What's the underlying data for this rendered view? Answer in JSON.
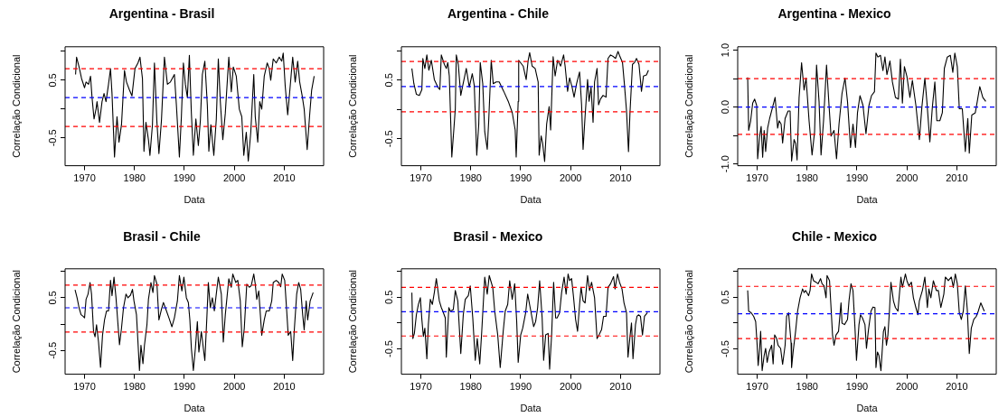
{
  "chart_data": [
    {
      "type": "line",
      "title": "Argentina - Brasil",
      "xlabel": "Data",
      "ylabel": "Correlação Condicional",
      "marker": "none",
      "legend": false,
      "xlim": [
        1966.1,
        2017.9
      ],
      "xticks": [
        1970,
        1980,
        1990,
        2000,
        2010
      ],
      "ylim": [
        -0.98,
        1.08
      ],
      "yticks": [
        {
          "value": -0.5,
          "label": "-0.5"
        },
        {
          "value": 0,
          "label": null
        },
        {
          "value": 0.5,
          "label": "0.5"
        },
        {
          "value": 1,
          "label": null
        }
      ],
      "ref_lines": [
        {
          "axis": "y",
          "value": 0.7,
          "color": "#ff0000",
          "line_style": "dashed"
        },
        {
          "axis": "y",
          "value": 0.2,
          "color": "#0000ff",
          "line_style": "dashed"
        },
        {
          "axis": "y",
          "value": -0.3,
          "color": "#ff0000",
          "line_style": "dashed"
        }
      ],
      "series": [
        {
          "color": "#000000",
          "x": [
            1968.2,
            1968.4,
            1968.9,
            1969.4,
            1970.0,
            1970.3,
            1970.8,
            1971.2,
            1971.5,
            1971.9,
            1972.3,
            1972.5,
            1973.0,
            1973.5,
            1973.9,
            1974.3,
            1974.8,
            1975.2,
            1975.5,
            1976.0,
            1976.5,
            1976.9,
            1977.4,
            1978.0,
            1978.4,
            1979.0,
            1979.5,
            1980.1,
            1980.7,
            1981.1,
            1981.6,
            1981.9,
            1982.3,
            1982.8,
            1983.1,
            1983.6,
            1984.0,
            1984.5,
            1984.9,
            1985.4,
            1986.0,
            1986.6,
            1987.2,
            1988.0,
            1988.4,
            1989.0,
            1989.4,
            1989.8,
            1990.2,
            1990.6,
            1991.0,
            1991.4,
            1991.8,
            1992.3,
            1992.8,
            1993.2,
            1993.6,
            1994.1,
            1994.6,
            1994.9,
            1995.3,
            1995.9,
            1996.4,
            1996.8,
            1997.2,
            1997.7,
            1998.2,
            1998.9,
            1999.4,
            1999.8,
            2000.4,
            2001.0,
            2001.5,
            2001.9,
            2002.4,
            2002.8,
            2003.3,
            2003.9,
            2004.2,
            2004.7,
            2005.1,
            2005.5,
            2006.0,
            2006.6,
            2007.0,
            2007.3,
            2007.8,
            2008.4,
            2009.0,
            2009.5,
            2009.8,
            2010.2,
            2010.7,
            2011.1,
            2011.7,
            2012.2,
            2012.7,
            2013.1,
            2013.6,
            2014.0,
            2014.6,
            2015.1,
            2015.5,
            2016.0
          ],
          "values": [
            0.6,
            0.9,
            0.73,
            0.53,
            0.37,
            0.47,
            0.43,
            0.57,
            0.2,
            -0.17,
            0,
            0.13,
            -0.23,
            0.13,
            0.27,
            0.13,
            0.43,
            0.7,
            0.27,
            -0.83,
            -0.13,
            -0.57,
            -0.27,
            0.67,
            0.47,
            0.33,
            0.23,
            0.7,
            0.8,
            0.9,
            0.53,
            -0.73,
            -0.23,
            -0.53,
            -0.8,
            -0.27,
            0.8,
            -0.23,
            -0.77,
            -0.2,
            0.9,
            0.43,
            0.47,
            0.6,
            0.07,
            -0.83,
            -0.13,
            0.8,
            0.43,
            0.2,
            0.93,
            -0.07,
            -0.8,
            -0.17,
            -0.63,
            -0.2,
            0.6,
            0.83,
            0.07,
            -0.73,
            -0.27,
            -0.8,
            -0.17,
            0.87,
            0.13,
            -0.53,
            -0.07,
            0.9,
            0.3,
            0.73,
            0.57,
            0,
            -0.13,
            -0.8,
            -0.4,
            -0.9,
            -0.4,
            0.6,
            -0.13,
            -0.57,
            0.13,
            0,
            0.57,
            0.8,
            0.7,
            0.5,
            0.87,
            0.8,
            0.9,
            0.83,
            0.97,
            0.4,
            -0.1,
            0.3,
            0.9,
            0.47,
            0.83,
            0.47,
            0.23,
            0,
            -0.7,
            -0.1,
            0.33,
            0.57
          ]
        }
      ]
    },
    {
      "type": "line",
      "title": "Argentina - Chile",
      "xlabel": "Data",
      "ylabel": "Correlação Condicional",
      "marker": "none",
      "legend": false,
      "xlim": [
        1966.1,
        2017.9
      ],
      "xticks": [
        1970,
        1980,
        1990,
        2000,
        2010
      ],
      "ylim": [
        -0.96,
        1.07
      ],
      "yticks": [
        {
          "value": -0.5,
          "label": "-0.5"
        },
        {
          "value": 0,
          "label": null
        },
        {
          "value": 0.5,
          "label": "0.5"
        },
        {
          "value": 1,
          "label": null
        }
      ],
      "ref_lines": [
        {
          "axis": "y",
          "value": 0.82,
          "color": "#ff0000",
          "line_style": "dashed"
        },
        {
          "axis": "y",
          "value": 0.39,
          "color": "#0000ff",
          "line_style": "dashed"
        },
        {
          "axis": "y",
          "value": -0.04,
          "color": "#ff0000",
          "line_style": "dashed"
        }
      ],
      "series": [
        {
          "color": "#000000",
          "x": [
            1968.2,
            1968.6,
            1969.1,
            1969.7,
            1970.2,
            1970.4,
            1970.8,
            1971.2,
            1971.6,
            1972.1,
            1972.7,
            1973.4,
            1973.8,
            1974.1,
            1974.7,
            1975.1,
            1975.4,
            1975.7,
            1976.2,
            1976.6,
            1976.9,
            1977.1,
            1977.5,
            1978.0,
            1978.4,
            1979.1,
            1979.7,
            1980.3,
            1980.7,
            1981.2,
            1981.6,
            1981.9,
            1982.4,
            1982.8,
            1983.3,
            1983.6,
            1984.1,
            1984.5,
            1985.1,
            1985.7,
            1986.6,
            1987.5,
            1988.3,
            1988.9,
            1989.1,
            1989.5,
            1989.6,
            1990.5,
            1991.1,
            1991.5,
            1991.8,
            1992.3,
            1992.9,
            1993.5,
            1993.7,
            1994.1,
            1994.4,
            1994.8,
            1995.2,
            1995.7,
            1996.0,
            1996.5,
            1996.9,
            1997.4,
            1998.0,
            1998.6,
            1998.9,
            1999.4,
            1999.8,
            2000.3,
            2000.7,
            2001.2,
            2001.8,
            2002.2,
            2002.5,
            2002.9,
            2003.4,
            2003.7,
            2004.1,
            2004.5,
            2004.8,
            2005.3,
            2005.6,
            2006.0,
            2006.5,
            2007.1,
            2007.5,
            2008.0,
            2008.6,
            2009.0,
            2009.5,
            2009.9,
            2010.4,
            2010.8,
            2011.2,
            2011.6,
            2011.9,
            2012.4,
            2012.8,
            2013.2,
            2013.7,
            2014.2,
            2014.6,
            2015.2,
            2015.6
          ],
          "values": [
            0.7,
            0.44,
            0.26,
            0.24,
            0.34,
            0.87,
            0.7,
            0.93,
            0.67,
            0.84,
            0.51,
            0.38,
            0.34,
            0.93,
            0.77,
            0.7,
            0.8,
            0.57,
            -0.81,
            -0.35,
            0.01,
            0.93,
            0.77,
            0.24,
            0.41,
            0.7,
            0.38,
            0.61,
            0.41,
            -0.78,
            -0.25,
            0.8,
            0.44,
            -0.38,
            -0.68,
            -0.18,
            0.84,
            0.44,
            0.47,
            0.47,
            0.31,
            0.14,
            -0.05,
            -0.35,
            -0.81,
            0.14,
            0.84,
            0.74,
            0.51,
            0.84,
            0.97,
            0.74,
            0.7,
            0.47,
            -0.78,
            -0.45,
            -0.58,
            -0.89,
            -0.25,
            0.05,
            -0.35,
            0.9,
            0.57,
            0.84,
            0.74,
            0.93,
            0.74,
            0.31,
            0.54,
            0.38,
            0.21,
            0.44,
            0.64,
            0.08,
            -0.68,
            -0.12,
            0.51,
            0.14,
            0.38,
            -0.22,
            0.47,
            0.7,
            0.08,
            0.18,
            0.24,
            0.21,
            0.87,
            0.93,
            0.9,
            0.87,
            0.99,
            0.9,
            0.8,
            0.41,
            -0.02,
            -0.72,
            -0.05,
            0.77,
            0.8,
            0.87,
            0.77,
            0.31,
            0.57,
            0.59,
            0.67
          ]
        }
      ]
    },
    {
      "type": "line",
      "title": "Argentina - Mexico",
      "xlabel": "Data",
      "ylabel": "Correlação Condicional",
      "marker": "none",
      "legend": false,
      "xlim": [
        1966.1,
        2017.9
      ],
      "xticks": [
        1970,
        1980,
        1990,
        2000,
        2010
      ],
      "ylim": [
        -1.03,
        1.06
      ],
      "yticks": [
        {
          "value": -1,
          "label": "-1.0"
        },
        {
          "value": -0.5,
          "label": null
        },
        {
          "value": 0,
          "label": "0.0"
        },
        {
          "value": 0.5,
          "label": null
        },
        {
          "value": 1,
          "label": "1.0"
        }
      ],
      "ref_lines": [
        {
          "axis": "y",
          "value": 0.5,
          "color": "#ff0000",
          "line_style": "dashed"
        },
        {
          "axis": "y",
          "value": 0,
          "color": "#0000ff",
          "line_style": "dashed"
        },
        {
          "axis": "y",
          "value": -0.48,
          "color": "#ff0000",
          "line_style": "dashed"
        }
      ],
      "series": [
        {
          "color": "#000000",
          "x": [
            1968.1,
            1968.3,
            1968.7,
            1969.1,
            1969.5,
            1969.9,
            1970.1,
            1970.5,
            1970.8,
            1971.1,
            1971.4,
            1971.7,
            1972.1,
            1972.5,
            1973.0,
            1973.6,
            1974.1,
            1974.4,
            1974.8,
            1975.1,
            1975.6,
            1976.2,
            1976.6,
            1976.9,
            1977.4,
            1977.7,
            1978.0,
            1978.4,
            1978.9,
            1979.4,
            1979.8,
            1980.4,
            1981.0,
            1981.5,
            1981.9,
            1982.4,
            1982.8,
            1983.3,
            1983.9,
            1984.4,
            1984.8,
            1985.4,
            1985.9,
            1986.4,
            1987.0,
            1987.6,
            1988.1,
            1988.7,
            1989.2,
            1989.7,
            1990.1,
            1990.6,
            1991.2,
            1991.8,
            1992.4,
            1992.9,
            1993.5,
            1993.8,
            1994.2,
            1994.7,
            1995.2,
            1995.6,
            1996.0,
            1996.6,
            1997.1,
            1997.7,
            1998.3,
            1998.7,
            1999.1,
            1999.5,
            2000.0,
            2000.6,
            2001.1,
            2001.8,
            2002.5,
            2003.0,
            2003.6,
            2004.0,
            2004.6,
            2005.1,
            2005.6,
            2006.0,
            2006.6,
            2007.1,
            2007.5,
            2008.1,
            2008.7,
            2009.2,
            2009.6,
            2010.1,
            2010.5,
            2011.1,
            2011.7,
            2012.2,
            2012.5,
            2013.0,
            2013.7,
            2014.1,
            2014.6,
            2015.2,
            2015.8
          ],
          "values": [
            0.52,
            -0.41,
            -0.24,
            0.07,
            0.14,
            0.03,
            -0.91,
            -0.51,
            -0.34,
            -0.88,
            -0.41,
            -0.78,
            -0.37,
            -0.2,
            -0.03,
            0.17,
            -0.37,
            -0.24,
            -0.3,
            -0.63,
            -0.2,
            -0.07,
            -0.07,
            -0.95,
            -0.57,
            -0.64,
            -0.93,
            0.17,
            0.78,
            0.3,
            0.51,
            -0.24,
            -0.84,
            -0.44,
            0.74,
            0.1,
            -0.84,
            -0.24,
            0.74,
            0.03,
            -0.51,
            -0.41,
            -0.91,
            -0.3,
            0.24,
            0.51,
            0.1,
            -0.71,
            -0.3,
            -0.71,
            -0.1,
            0.2,
            0.03,
            -0.47,
            0.03,
            0.2,
            0.27,
            0.95,
            0.88,
            0.91,
            0.64,
            0.88,
            0.57,
            0.81,
            0.44,
            0.17,
            0.14,
            0.84,
            0.07,
            0.71,
            0.54,
            0.17,
            0.47,
            0.03,
            -0.57,
            0,
            0.51,
            0.1,
            -0.61,
            0,
            0.44,
            -0.24,
            -0.24,
            -0.1,
            0.68,
            0.88,
            0.91,
            0.61,
            0.95,
            0.71,
            -0.03,
            -0.03,
            -0.78,
            -0.2,
            -0.81,
            -0.14,
            -0.1,
            0.1,
            0.36,
            0.17,
            0.1
          ]
        }
      ]
    },
    {
      "type": "line",
      "title": "Brasil - Chile",
      "xlabel": "Data",
      "ylabel": "Correlação Condicional",
      "marker": "none",
      "legend": false,
      "xlim": [
        1966.1,
        2017.9
      ],
      "xticks": [
        1970,
        1980,
        1990,
        2000,
        2010
      ],
      "ylim": [
        -0.95,
        1.05
      ],
      "yticks": [
        {
          "value": -0.5,
          "label": "-0.5"
        },
        {
          "value": 0,
          "label": null
        },
        {
          "value": 0.5,
          "label": "0.5"
        },
        {
          "value": 1,
          "label": null
        }
      ],
      "ref_lines": [
        {
          "axis": "y",
          "value": 0.74,
          "color": "#ff0000",
          "line_style": "dashed"
        },
        {
          "axis": "y",
          "value": 0.31,
          "color": "#0000ff",
          "line_style": "dashed"
        },
        {
          "axis": "y",
          "value": -0.15,
          "color": "#ff0000",
          "line_style": "dashed"
        }
      ],
      "series": [
        {
          "color": "#000000",
          "x": [
            1968.1,
            1968.5,
            1968.9,
            1969.3,
            1969.7,
            1970.0,
            1970.3,
            1970.7,
            1971.1,
            1971.4,
            1971.8,
            1972.1,
            1972.4,
            1972.8,
            1973.2,
            1973.6,
            1974.0,
            1974.4,
            1974.8,
            1975.2,
            1975.5,
            1975.9,
            1976.3,
            1976.7,
            1977.0,
            1977.4,
            1977.8,
            1978.3,
            1978.7,
            1979.2,
            1979.6,
            1979.9,
            1980.4,
            1980.7,
            1981.0,
            1981.3,
            1981.7,
            1982.0,
            1982.5,
            1982.8,
            1983.3,
            1983.7,
            1984.0,
            1984.5,
            1984.9,
            1985.4,
            1985.8,
            1986.3,
            1986.9,
            1987.5,
            1988.0,
            1988.6,
            1989.0,
            1989.5,
            1989.9,
            1990.4,
            1990.8,
            1991.1,
            1991.4,
            1991.8,
            1992.2,
            1992.6,
            1992.9,
            1993.4,
            1993.8,
            1994.1,
            1994.5,
            1994.8,
            1995.2,
            1995.6,
            1996.0,
            1996.5,
            1996.8,
            1997.4,
            1997.8,
            1998.2,
            1998.6,
            1998.9,
            1999.4,
            1999.7,
            2000.3,
            2000.7,
            2001.2,
            2001.6,
            2002.0,
            2002.5,
            2003.0,
            2003.4,
            2003.9,
            2004.2,
            2004.5,
            2004.9,
            2005.5,
            2006.0,
            2006.4,
            2007.0,
            2007.5,
            2007.8,
            2008.4,
            2008.9,
            2009.3,
            2009.6,
            2010.1,
            2010.5,
            2010.8,
            2011.3,
            2011.7,
            2012.0,
            2012.5,
            2012.9,
            2013.3,
            2013.7,
            2014.0,
            2014.4,
            2014.7,
            2015.2,
            2015.8
          ],
          "values": [
            0.65,
            0.5,
            0.31,
            0.18,
            0.15,
            0.12,
            0.47,
            0.57,
            0.79,
            0.57,
            -0.14,
            -0.24,
            -0.01,
            -0.34,
            -0.82,
            -0.21,
            0.08,
            0.25,
            0.25,
            0.83,
            0.54,
            0.89,
            0.5,
            -0.01,
            -0.39,
            -0.08,
            0.31,
            0.57,
            0.5,
            0.55,
            0.66,
            0.44,
            0.18,
            -0.34,
            -0.88,
            -0.4,
            -0.75,
            -0.4,
            -0.01,
            0.47,
            0.79,
            0.6,
            0.92,
            0.76,
            0.08,
            0.28,
            0.41,
            0.28,
            0.12,
            -0.05,
            0.12,
            0.44,
            0.92,
            0.63,
            0.89,
            0.5,
            0.41,
            0.08,
            -0.46,
            -0.88,
            -0.46,
            0.05,
            -0.53,
            -0.14,
            -0.46,
            -0.69,
            0.12,
            0.79,
            0.31,
            0.5,
            0.25,
            0.66,
            0.89,
            0.57,
            -0.34,
            0.18,
            0.57,
            0.86,
            0.7,
            0.95,
            0.79,
            0.83,
            0.44,
            -0.43,
            -0.08,
            0.76,
            0.7,
            0.73,
            0.95,
            0.76,
            0.47,
            0.63,
            -0.21,
            0.08,
            0.25,
            0.25,
            0.44,
            0.79,
            0.83,
            0.79,
            0.71,
            0.95,
            0.83,
            0.25,
            -0.21,
            -0.14,
            -0.69,
            -0.14,
            0.57,
            0.79,
            0.66,
            0.18,
            -0.11,
            0.44,
            0.08,
            0.44,
            0.6
          ]
        }
      ]
    },
    {
      "type": "line",
      "title": "Brasil - Mexico",
      "xlabel": "Data",
      "ylabel": "Correlação Condicional",
      "marker": "none",
      "legend": false,
      "xlim": [
        1966.1,
        2017.9
      ],
      "xticks": [
        1970,
        1980,
        1990,
        2000,
        2010
      ],
      "ylim": [
        -0.99,
        1.05
      ],
      "yticks": [
        {
          "value": -0.5,
          "label": "-0.5"
        },
        {
          "value": 0,
          "label": null
        },
        {
          "value": 0.5,
          "label": "0.5"
        },
        {
          "value": 1,
          "label": null
        }
      ],
      "ref_lines": [
        {
          "axis": "y",
          "value": 0.69,
          "color": "#ff0000",
          "line_style": "dashed"
        },
        {
          "axis": "y",
          "value": 0.22,
          "color": "#0000ff",
          "line_style": "dashed"
        },
        {
          "axis": "y",
          "value": -0.25,
          "color": "#ff0000",
          "line_style": "dashed"
        }
      ],
      "series": [
        {
          "color": "#000000",
          "x": [
            1968.2,
            1968.4,
            1968.7,
            1969.1,
            1969.5,
            1969.9,
            1970.2,
            1970.5,
            1970.8,
            1971.2,
            1971.5,
            1971.9,
            1972.3,
            1972.7,
            1973.1,
            1973.7,
            1974.1,
            1974.4,
            1974.9,
            1975.1,
            1975.6,
            1975.9,
            1976.5,
            1976.9,
            1977.4,
            1978.0,
            1978.5,
            1978.9,
            1979.5,
            1979.9,
            1980.4,
            1980.9,
            1981.3,
            1981.8,
            1982.2,
            1982.8,
            1983.3,
            1983.7,
            1984.4,
            1984.8,
            1985.4,
            1985.9,
            1986.5,
            1986.9,
            1987.4,
            1987.8,
            1988.3,
            1988.8,
            1989.2,
            1989.5,
            1990.0,
            1990.4,
            1991.0,
            1991.4,
            1991.9,
            1992.6,
            1993.0,
            1993.4,
            1993.8,
            1994.3,
            1994.6,
            1995.0,
            1995.5,
            1995.8,
            1996.2,
            1996.6,
            1997.0,
            1997.3,
            1997.8,
            1998.2,
            1998.7,
            1999.1,
            1999.5,
            1999.8,
            2000.2,
            2000.6,
            2001.0,
            2001.4,
            2001.8,
            2002.1,
            2002.5,
            2002.9,
            2003.4,
            2003.8,
            2004.2,
            2004.8,
            2005.3,
            2005.7,
            2006.2,
            2006.6,
            2007.1,
            2007.5,
            2008.0,
            2008.6,
            2008.9,
            2009.4,
            2009.8,
            2010.3,
            2010.7,
            2011.2,
            2011.5,
            2011.9,
            2012.2,
            2012.5,
            2013.0,
            2013.3,
            2013.6,
            2014.0,
            2014.4,
            2014.8,
            2015.4
          ],
          "values": [
            0.59,
            -0.3,
            -0.2,
            0.16,
            0.36,
            0.49,
            0.07,
            -0.26,
            -0.1,
            -0.69,
            -0.03,
            0.46,
            0.36,
            0.59,
            0.86,
            0.43,
            0.3,
            0.23,
            0.1,
            -0.66,
            0.3,
            0.23,
            0.26,
            0.63,
            0.43,
            -0.59,
            0.16,
            0.46,
            0.53,
            0.72,
            0.1,
            -0.72,
            -0.3,
            -0.79,
            -0.16,
            0.89,
            0.56,
            0.92,
            0.69,
            0.23,
            -0.23,
            -0.86,
            -0.16,
            0.23,
            0.36,
            0.82,
            0.46,
            0.76,
            0.03,
            -0.76,
            -0.23,
            -0.1,
            0.2,
            0.56,
            0.3,
            -0.07,
            0.03,
            0.3,
            0.82,
            0.1,
            -0.72,
            -0.23,
            -0.2,
            -0.89,
            -0.23,
            0.79,
            0.1,
            0.1,
            0.2,
            0.59,
            0.89,
            0.56,
            0.95,
            0.82,
            0.86,
            0.49,
            0.07,
            -0.16,
            0.36,
            0.69,
            0.43,
            0.39,
            0.92,
            0.63,
            0.79,
            0.49,
            -0.3,
            -0.23,
            -0.13,
            0.13,
            0.13,
            0.69,
            0.76,
            0.9,
            0.66,
            0.95,
            0.79,
            0.66,
            0.39,
            0.2,
            -0.66,
            -0.26,
            0,
            -0.69,
            -0.03,
            0.13,
            0.16,
            0.13,
            -0.23,
            0.13,
            0.2
          ]
        }
      ]
    },
    {
      "type": "line",
      "title": "Chile - Mexico",
      "xlabel": "Data",
      "ylabel": "Correlação Condicional",
      "marker": "none",
      "legend": false,
      "xlim": [
        1966.1,
        2017.9
      ],
      "xticks": [
        1970,
        1980,
        1990,
        2000,
        2010
      ],
      "ylim": [
        -0.99,
        1.05
      ],
      "yticks": [
        {
          "value": -0.5,
          "label": "-0.5"
        },
        {
          "value": 0,
          "label": null
        },
        {
          "value": 0.5,
          "label": "0.5"
        },
        {
          "value": 1,
          "label": null
        }
      ],
      "ref_lines": [
        {
          "axis": "y",
          "value": 0.71,
          "color": "#ff0000",
          "line_style": "dashed"
        },
        {
          "axis": "y",
          "value": 0.18,
          "color": "#0000ff",
          "line_style": "dashed"
        },
        {
          "axis": "y",
          "value": -0.3,
          "color": "#ff0000",
          "line_style": "dashed"
        }
      ],
      "series": [
        {
          "color": "#000000",
          "x": [
            1968.1,
            1968.3,
            1968.8,
            1969.3,
            1969.7,
            1970.0,
            1970.2,
            1970.5,
            1970.7,
            1971.0,
            1971.4,
            1971.7,
            1972.0,
            1972.4,
            1972.9,
            1973.2,
            1973.5,
            1973.9,
            1974.2,
            1974.7,
            1975.1,
            1975.6,
            1975.9,
            1976.3,
            1976.8,
            1976.9,
            1977.2,
            1977.7,
            1978.1,
            1978.6,
            1979.1,
            1979.4,
            1979.7,
            1980.3,
            1980.6,
            1980.9,
            1981.3,
            1981.8,
            1982.2,
            1982.7,
            1983.0,
            1983.4,
            1983.8,
            1984.0,
            1984.5,
            1984.8,
            1985.1,
            1985.4,
            1985.8,
            1986.3,
            1986.8,
            1987.0,
            1987.5,
            1988.1,
            1988.4,
            1988.8,
            1989.2,
            1989.6,
            1989.9,
            1990.4,
            1990.7,
            1991.1,
            1991.6,
            1991.9,
            1992.3,
            1992.8,
            1993.2,
            1993.6,
            1993.8,
            1994.1,
            1994.4,
            1994.8,
            1995.3,
            1995.6,
            1995.9,
            1996.2,
            1996.5,
            1996.8,
            1997.3,
            1997.7,
            1998.2,
            1998.8,
            1999.1,
            1999.7,
            2000.0,
            2000.4,
            2000.9,
            2001.3,
            2001.8,
            2002.2,
            2002.5,
            2003.1,
            2003.6,
            2004.1,
            2004.4,
            2004.8,
            2005.3,
            2005.9,
            2006.3,
            2006.8,
            2007.4,
            2007.7,
            2008.3,
            2008.9,
            2009.3,
            2009.7,
            2010.1,
            2010.5,
            2010.9,
            2011.3,
            2011.7,
            2012.1,
            2012.5,
            2012.9,
            2013.4,
            2013.9,
            2014.3,
            2014.8,
            2015.5
          ],
          "values": [
            0.63,
            0.23,
            0.2,
            0.13,
            0.03,
            -0.43,
            -0.82,
            -0.49,
            -0.16,
            -0.92,
            -0.63,
            -0.49,
            -0.76,
            -0.56,
            -0.43,
            -0.79,
            -0.23,
            -0.3,
            -0.43,
            -0.49,
            -0.8,
            -0.43,
            0.13,
            0.2,
            -0.39,
            -0.86,
            -0.56,
            -0.16,
            0.23,
            0.49,
            0.66,
            0.59,
            0.63,
            0.53,
            0.63,
            0.95,
            0.82,
            0.79,
            0.76,
            0.86,
            0.76,
            0.72,
            0.49,
            0.92,
            0.82,
            0.3,
            -0.23,
            -0.43,
            -0.23,
            -0.16,
            0.39,
            0,
            -0.03,
            0.07,
            0.43,
            0.76,
            0.63,
            -0.1,
            -0.72,
            -0.03,
            0.16,
            0.1,
            -0.03,
            -0.49,
            -0.13,
            0.23,
            0.31,
            0.3,
            -0.86,
            -0.56,
            -0.63,
            -0.92,
            -0.16,
            -0.07,
            -0.43,
            -0.23,
            0.23,
            0.79,
            0.43,
            0.3,
            0.23,
            0.89,
            0.69,
            0.95,
            0.82,
            0.72,
            0.79,
            0.49,
            0.3,
            0.16,
            0.43,
            0.63,
            0.89,
            0.3,
            0.66,
            0.49,
            0.82,
            0.63,
            0.63,
            0.3,
            0.56,
            0.89,
            0.82,
            0.89,
            0.69,
            0.95,
            0.76,
            0.2,
            0.07,
            0.23,
            0.72,
            0.26,
            -0.59,
            -0.1,
            0.07,
            0.13,
            0.23,
            0.39,
            0.23
          ]
        }
      ]
    }
  ]
}
